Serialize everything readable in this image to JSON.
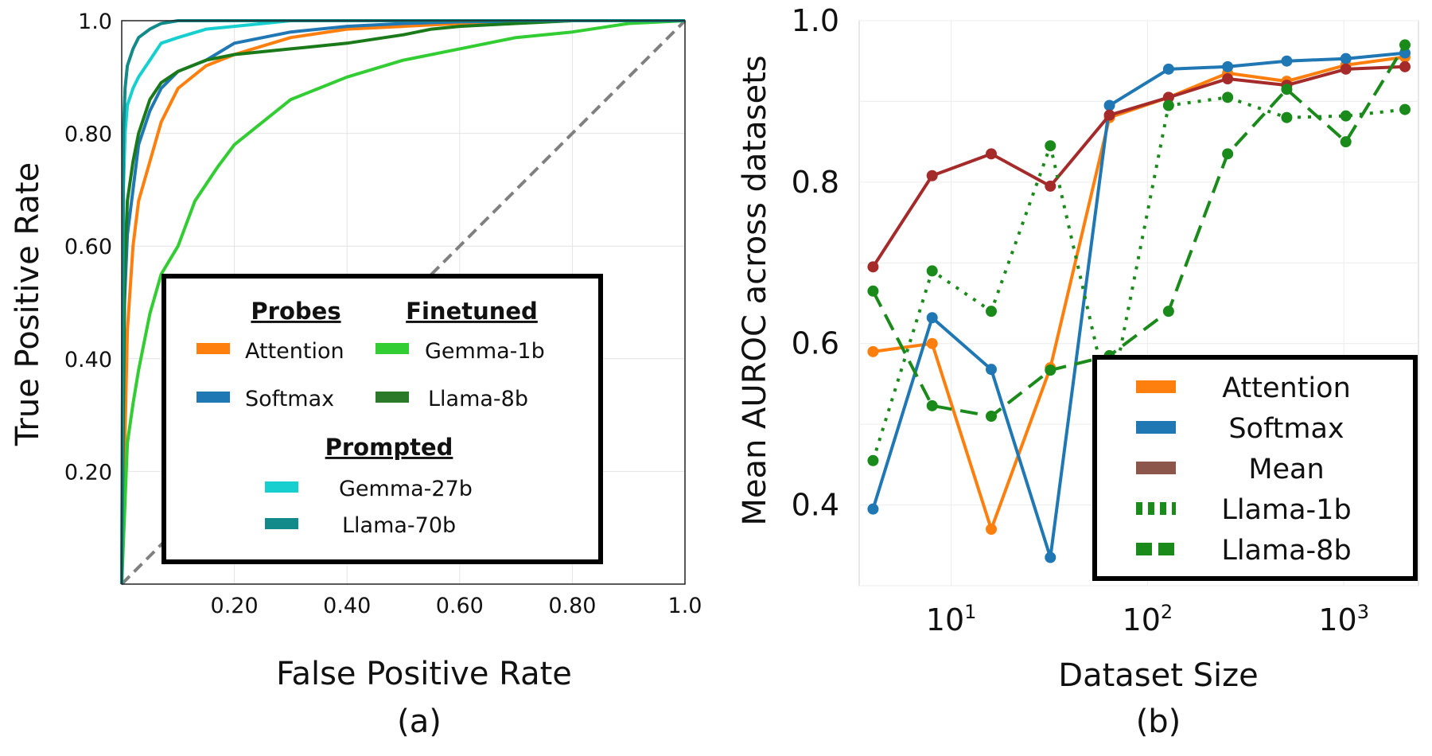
{
  "chart_data": [
    {
      "type": "line",
      "panel_label": "(a)",
      "xlabel": "False Positive Rate",
      "ylabel": "True Positive Rate",
      "xlim": [
        0,
        1.0
      ],
      "ylim": [
        0,
        1.0
      ],
      "x_ticks": [
        "0.20",
        "0.40",
        "0.60",
        "0.80",
        "1.0"
      ],
      "x_tick_values": [
        0.2,
        0.4,
        0.6,
        0.8,
        1.0
      ],
      "y_ticks": [
        "0.20",
        "0.40",
        "0.60",
        "0.80",
        "1.0"
      ],
      "y_tick_values": [
        0.2,
        0.4,
        0.6,
        0.8,
        1.0
      ],
      "grid": true,
      "legend_position": "bottom-right",
      "legend_groups": [
        {
          "title": "Probes",
          "entries": [
            "Attention",
            "Softmax"
          ]
        },
        {
          "title": "Finetuned",
          "entries": [
            "Gemma-1b",
            "Llama-8b"
          ]
        },
        {
          "title": "Prompted",
          "entries": [
            "Gemma-27b",
            "Llama-70b"
          ]
        }
      ],
      "series": [
        {
          "name": "Attention",
          "color": "#ff7f0e",
          "x": [
            0,
            0.01,
            0.02,
            0.03,
            0.05,
            0.07,
            0.1,
            0.15,
            0.2,
            0.3,
            0.4,
            0.5,
            0.6,
            0.8,
            1.0
          ],
          "y": [
            0,
            0.45,
            0.6,
            0.68,
            0.75,
            0.82,
            0.88,
            0.92,
            0.94,
            0.97,
            0.985,
            0.99,
            0.995,
            1.0,
            1.0
          ]
        },
        {
          "name": "Softmax",
          "color": "#1f77b4",
          "x": [
            0,
            0.005,
            0.01,
            0.02,
            0.03,
            0.05,
            0.07,
            0.1,
            0.15,
            0.2,
            0.3,
            0.4,
            0.5,
            0.6,
            0.8,
            1.0
          ],
          "y": [
            0,
            0.5,
            0.62,
            0.7,
            0.78,
            0.84,
            0.88,
            0.91,
            0.93,
            0.96,
            0.98,
            0.99,
            0.995,
            0.998,
            1.0,
            1.0
          ]
        },
        {
          "name": "Gemma-1b",
          "color": "#32cd32",
          "x": [
            0,
            0.01,
            0.02,
            0.03,
            0.05,
            0.07,
            0.1,
            0.13,
            0.17,
            0.2,
            0.25,
            0.3,
            0.35,
            0.4,
            0.5,
            0.6,
            0.7,
            0.8,
            0.9,
            1.0
          ],
          "y": [
            0,
            0.25,
            0.32,
            0.38,
            0.48,
            0.55,
            0.6,
            0.68,
            0.74,
            0.78,
            0.82,
            0.86,
            0.88,
            0.9,
            0.93,
            0.95,
            0.97,
            0.98,
            0.995,
            1.0
          ]
        },
        {
          "name": "Llama-8b",
          "color": "#1a7a1a",
          "x": [
            0,
            0.005,
            0.01,
            0.02,
            0.03,
            0.05,
            0.07,
            0.1,
            0.15,
            0.2,
            0.3,
            0.4,
            0.5,
            0.55,
            0.6,
            0.7,
            0.8,
            1.0
          ],
          "y": [
            0,
            0.55,
            0.68,
            0.75,
            0.8,
            0.86,
            0.89,
            0.91,
            0.93,
            0.94,
            0.95,
            0.96,
            0.975,
            0.985,
            0.99,
            0.995,
            1.0,
            1.0
          ]
        },
        {
          "name": "Gemma-27b",
          "color": "#17cfcf",
          "x": [
            0,
            0.003,
            0.006,
            0.01,
            0.02,
            0.03,
            0.05,
            0.07,
            0.1,
            0.15,
            0.2,
            0.3,
            0.4,
            0.6,
            1.0
          ],
          "y": [
            0,
            0.7,
            0.8,
            0.85,
            0.88,
            0.9,
            0.93,
            0.96,
            0.97,
            0.985,
            0.99,
            1.0,
            1.0,
            1.0,
            1.0
          ]
        },
        {
          "name": "Llama-70b",
          "color": "#138a8a",
          "x": [
            0,
            0.003,
            0.006,
            0.01,
            0.02,
            0.03,
            0.05,
            0.07,
            0.1,
            0.15,
            0.2,
            0.3,
            1.0
          ],
          "y": [
            0,
            0.8,
            0.88,
            0.92,
            0.95,
            0.97,
            0.985,
            0.995,
            1.0,
            1.0,
            1.0,
            1.0,
            1.0
          ]
        }
      ],
      "reference_line": {
        "x": [
          0,
          1
        ],
        "y": [
          0,
          1
        ],
        "style": "dashed",
        "color": "#808080"
      }
    },
    {
      "type": "line",
      "panel_label": "(b)",
      "xlabel": "Dataset Size",
      "ylabel": "Mean AUROC across datasets",
      "x_scale": "log",
      "xlim": [
        3.4,
        2400
      ],
      "ylim": [
        0.3,
        1.0
      ],
      "x_ticks": [
        {
          "base": "10",
          "exp": "1",
          "value": 10
        },
        {
          "base": "10",
          "exp": "2",
          "value": 100
        },
        {
          "base": "10",
          "exp": "3",
          "value": 1000
        }
      ],
      "y_ticks": [
        "0.4",
        "0.6",
        "0.8",
        "1.0"
      ],
      "y_tick_values": [
        0.4,
        0.6,
        0.8,
        1.0
      ],
      "grid": true,
      "legend_position": "bottom-right",
      "x": [
        4,
        8,
        16,
        32,
        64,
        128,
        256,
        512,
        1024,
        2048
      ],
      "series": [
        {
          "name": "Attention",
          "color": "#ff7f0e",
          "style": "solid",
          "legend_color": "#ff7f0e",
          "values": [
            0.59,
            0.6,
            0.37,
            0.57,
            0.88,
            0.905,
            0.935,
            0.925,
            0.945,
            0.955
          ]
        },
        {
          "name": "Softmax",
          "color": "#1f77b4",
          "style": "solid",
          "legend_color": "#1f77b4",
          "values": [
            0.395,
            0.632,
            0.568,
            0.335,
            0.895,
            0.94,
            0.943,
            0.95,
            0.953,
            0.96
          ]
        },
        {
          "name": "Mean",
          "color": "#a52a2a",
          "style": "solid",
          "legend_color": "#8c564b",
          "values": [
            0.695,
            0.808,
            0.835,
            0.795,
            0.883,
            0.905,
            0.928,
            0.92,
            0.94,
            0.943
          ]
        },
        {
          "name": "Llama-1b",
          "color": "#1a8a1a",
          "style": "dotted",
          "legend_color": "#1a8a1a",
          "values": [
            0.455,
            0.69,
            0.64,
            0.845,
            0.525,
            0.895,
            0.905,
            0.88,
            0.882,
            0.89
          ]
        },
        {
          "name": "Llama-8b",
          "color": "#1a8a1a",
          "style": "dashed",
          "legend_color": "#1a8a1a",
          "values": [
            0.665,
            0.523,
            0.51,
            0.567,
            0.585,
            0.64,
            0.835,
            0.915,
            0.85,
            0.97
          ]
        }
      ]
    }
  ]
}
